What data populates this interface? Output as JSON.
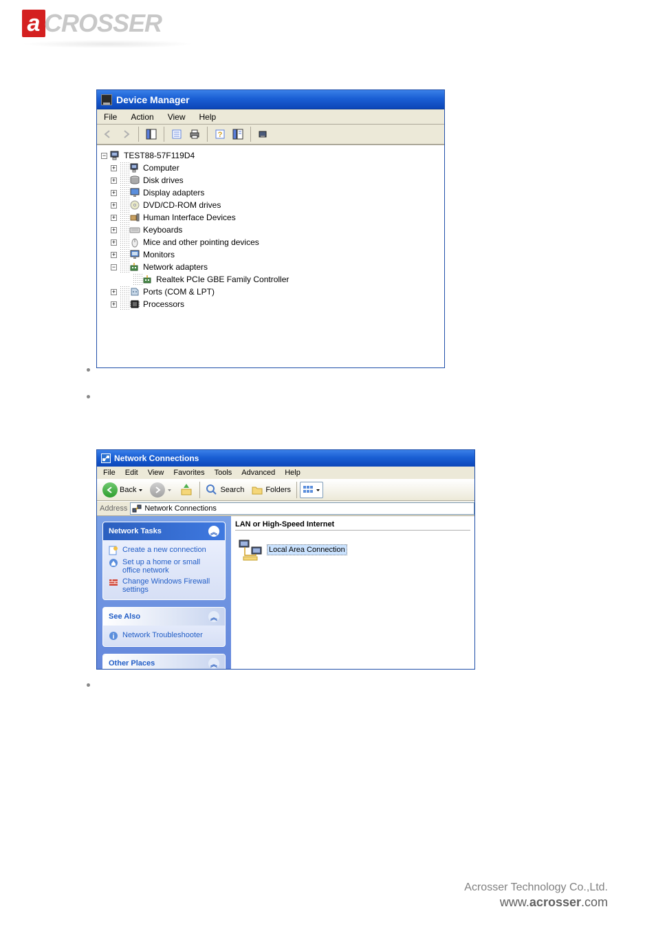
{
  "logo": {
    "letter": "a",
    "rest": "CROSSER"
  },
  "device_manager": {
    "title": "Device Manager",
    "menu": [
      "File",
      "Action",
      "View",
      "Help"
    ],
    "tree": {
      "root": "TEST88-57F119D4",
      "nodes": [
        {
          "label": "Computer",
          "exp": "+",
          "icon": "computer"
        },
        {
          "label": "Disk drives",
          "exp": "+",
          "icon": "disk"
        },
        {
          "label": "Display adapters",
          "exp": "+",
          "icon": "display"
        },
        {
          "label": "DVD/CD-ROM drives",
          "exp": "+",
          "icon": "cd"
        },
        {
          "label": "Human Interface Devices",
          "exp": "+",
          "icon": "hid"
        },
        {
          "label": "Keyboards",
          "exp": "+",
          "icon": "keyboard"
        },
        {
          "label": "Mice and other pointing devices",
          "exp": "+",
          "icon": "mouse"
        },
        {
          "label": "Monitors",
          "exp": "+",
          "icon": "monitor"
        },
        {
          "label": "Network adapters",
          "exp": "-",
          "icon": "network",
          "children": [
            {
              "label": "Realtek PCIe GBE Family Controller",
              "icon": "network"
            }
          ]
        },
        {
          "label": "Ports (COM & LPT)",
          "exp": "+",
          "icon": "port"
        },
        {
          "label": "Processors",
          "exp": "+",
          "icon": "cpu"
        }
      ]
    }
  },
  "network_connections": {
    "title": "Network Connections",
    "menu": [
      "File",
      "Edit",
      "View",
      "Favorites",
      "Tools",
      "Advanced",
      "Help"
    ],
    "toolbar": {
      "back": "Back",
      "search": "Search",
      "folders": "Folders"
    },
    "address_label": "Address",
    "address_value": "Network Connections",
    "side": {
      "tasks_header": "Network Tasks",
      "tasks": [
        "Create a new connection",
        "Set up a home or small office network",
        "Change Windows Firewall settings"
      ],
      "seealso_header": "See Also",
      "seealso": [
        "Network Troubleshooter"
      ],
      "other_header": "Other Places"
    },
    "group_header": "LAN or High-Speed Internet",
    "connection_label": "Local Area Connection"
  },
  "footer": {
    "line1": "Acrosser Technology Co.,Ltd.",
    "line2_prefix": "www.",
    "line2_bold": "acrosser",
    "line2_suffix": ".com"
  },
  "colors": {
    "xp_blue": "#1a5fd4",
    "xp_blue_light": "#3a80e8",
    "panel_bg": "#ece9d8",
    "link_blue": "#215dc6",
    "brand_red": "#d42020",
    "logo_gray": "#c8c8c8"
  }
}
